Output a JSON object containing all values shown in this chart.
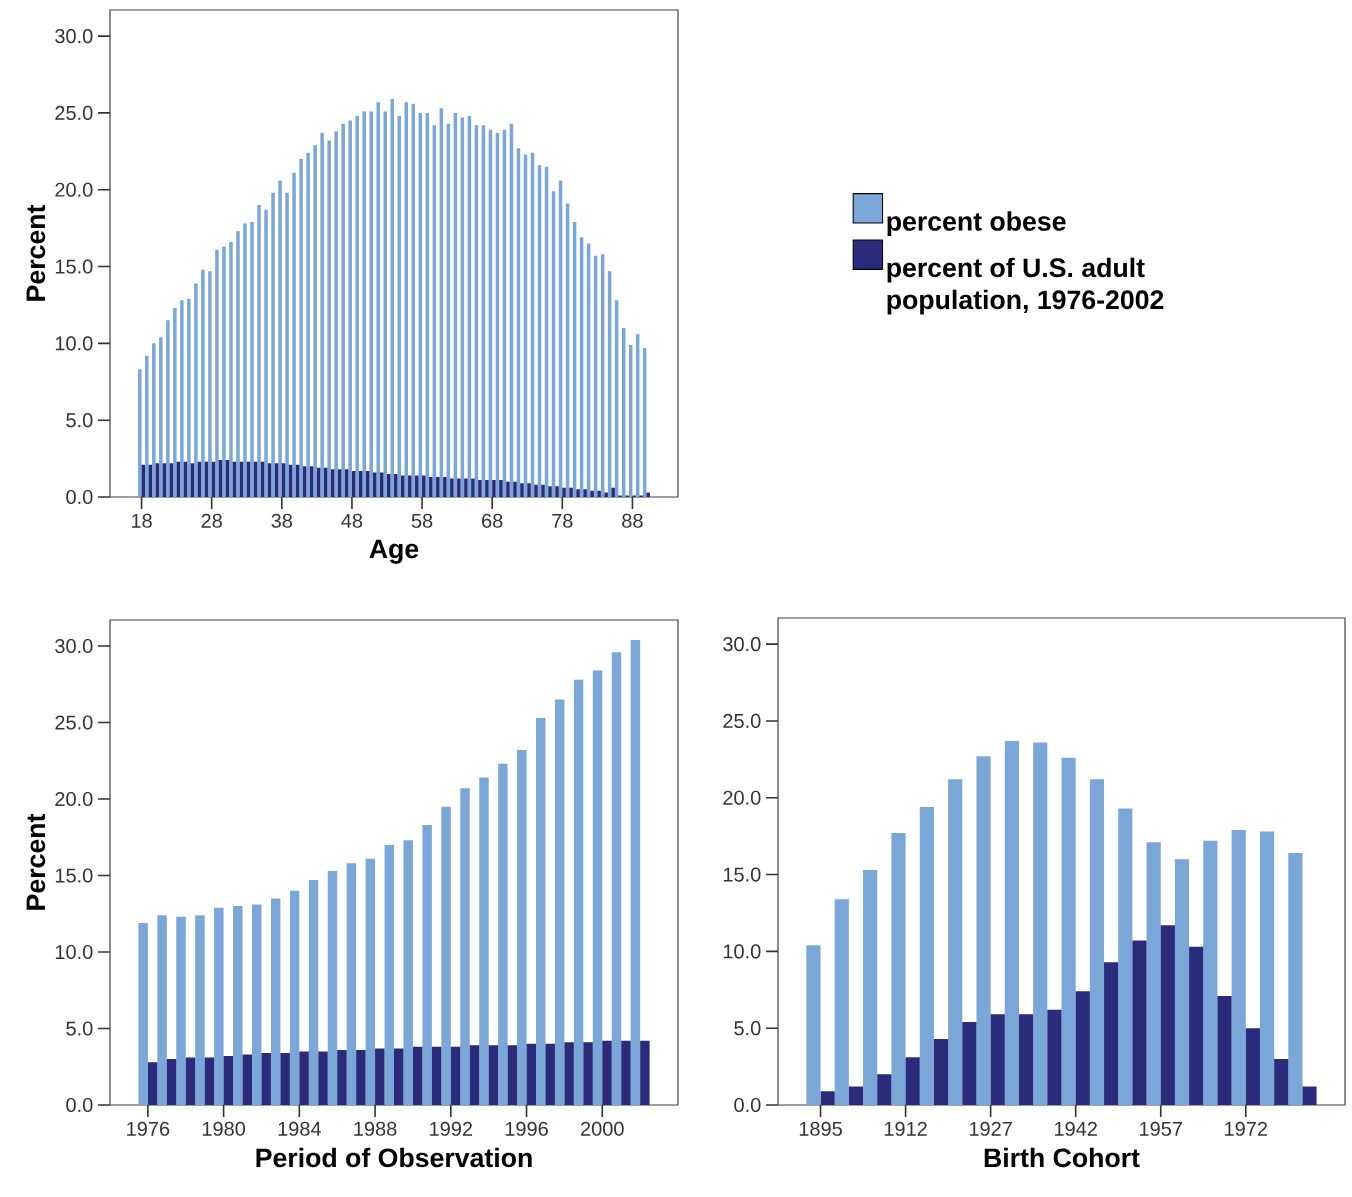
{
  "chart_data": [
    {
      "type": "bar",
      "xlabel": "Age",
      "ylabel": "Percent",
      "legend": "right",
      "categories": [
        "18",
        null,
        null,
        null,
        null,
        null,
        null,
        null,
        null,
        null,
        "28",
        null,
        null,
        null,
        null,
        null,
        null,
        null,
        null,
        null,
        "38",
        null,
        null,
        null,
        null,
        null,
        null,
        null,
        null,
        null,
        "48",
        null,
        null,
        null,
        null,
        null,
        null,
        null,
        null,
        null,
        "58",
        null,
        null,
        null,
        null,
        null,
        null,
        null,
        null,
        null,
        "68",
        null,
        null,
        null,
        null,
        null,
        null,
        null,
        null,
        null,
        "78",
        null,
        null,
        null,
        null,
        null,
        null,
        null,
        null,
        null,
        "88",
        null,
        null
      ],
      "series": [
        {
          "name": "percent obese",
          "color": "#7aa7d8",
          "values": [
            8.3,
            9.2,
            10.0,
            10.4,
            11.5,
            12.3,
            12.8,
            12.9,
            13.9,
            14.8,
            14.7,
            16.1,
            16.3,
            16.6,
            17.3,
            17.8,
            17.9,
            19.0,
            18.7,
            19.8,
            20.6,
            19.8,
            21.1,
            22.0,
            22.4,
            22.9,
            23.7,
            23.2,
            23.8,
            24.3,
            24.5,
            24.8,
            25.1,
            25.1,
            25.7,
            25.1,
            25.9,
            24.8,
            25.7,
            25.6,
            25.0,
            25.0,
            24.2,
            25.3,
            24.3,
            25.0,
            24.7,
            24.8,
            24.2,
            24.2,
            23.9,
            23.7,
            23.9,
            24.3,
            22.7,
            22.3,
            22.4,
            21.6,
            21.5,
            19.9,
            20.6,
            19.1,
            17.9,
            16.9,
            16.5,
            15.7,
            15.8,
            14.7,
            12.8,
            11.0,
            9.9,
            10.6,
            9.7
          ]
        },
        {
          "name": "percent of U.S. adult population, 1976-2002",
          "color": "#2b2b7b",
          "values": [
            2.1,
            2.1,
            2.2,
            2.2,
            2.2,
            2.3,
            2.3,
            2.2,
            2.3,
            2.3,
            2.3,
            2.4,
            2.4,
            2.3,
            2.3,
            2.3,
            2.3,
            2.3,
            2.2,
            2.2,
            2.2,
            2.1,
            2.1,
            2.0,
            2.0,
            1.9,
            1.9,
            1.8,
            1.8,
            1.8,
            1.7,
            1.7,
            1.7,
            1.6,
            1.6,
            1.5,
            1.5,
            1.4,
            1.4,
            1.4,
            1.4,
            1.3,
            1.3,
            1.3,
            1.2,
            1.2,
            1.2,
            1.2,
            1.1,
            1.1,
            1.1,
            1.1,
            1.0,
            1.0,
            0.9,
            0.9,
            0.8,
            0.8,
            0.7,
            0.7,
            0.6,
            0.6,
            0.5,
            0.5,
            0.4,
            0.4,
            0.3,
            0.6,
            0.1,
            0.1,
            0.1,
            0.1,
            0.3
          ]
        }
      ],
      "ylim": [
        0,
        31.7
      ],
      "yticks": [
        {
          "value": 0,
          "label": "0.0"
        },
        {
          "value": 5,
          "label": "5.0"
        },
        {
          "value": 10,
          "label": "10.0"
        },
        {
          "value": 15,
          "label": "15.0"
        },
        {
          "value": 20,
          "label": "20.0"
        },
        {
          "value": 25,
          "label": "25.0"
        },
        {
          "value": 30,
          "label": "30.0"
        }
      ]
    },
    {
      "type": "bar",
      "xlabel": "Period of Observation",
      "ylabel": "Percent",
      "categories": [
        "1976",
        null,
        null,
        null,
        "1980",
        null,
        null,
        null,
        "1984",
        null,
        null,
        null,
        "1988",
        null,
        null,
        null,
        "1992",
        null,
        null,
        null,
        "1996",
        null,
        null,
        null,
        "2000",
        null,
        null
      ],
      "series": [
        {
          "color": "#7aa7d8",
          "values": [
            11.9,
            12.4,
            12.3,
            12.4,
            12.9,
            13.0,
            13.1,
            13.5,
            14.0,
            14.7,
            15.3,
            15.8,
            16.1,
            17.0,
            17.3,
            18.3,
            19.5,
            20.7,
            21.4,
            22.3,
            23.2,
            25.3,
            26.5,
            27.8,
            28.4,
            29.6,
            30.4
          ]
        },
        {
          "color": "#2b2b7b",
          "values": [
            2.8,
            3.0,
            3.1,
            3.1,
            3.2,
            3.3,
            3.4,
            3.4,
            3.5,
            3.5,
            3.6,
            3.6,
            3.7,
            3.7,
            3.8,
            3.8,
            3.8,
            3.9,
            3.9,
            3.9,
            4.0,
            4.0,
            4.1,
            4.1,
            4.2,
            4.2,
            4.2
          ]
        }
      ],
      "ylim": [
        0,
        31.7
      ],
      "yticks": [
        {
          "value": 0,
          "label": "0.0"
        },
        {
          "value": 5,
          "label": "5.0"
        },
        {
          "value": 10,
          "label": "10.0"
        },
        {
          "value": 15,
          "label": "15.0"
        },
        {
          "value": 20,
          "label": "20.0"
        },
        {
          "value": 25,
          "label": "25.0"
        },
        {
          "value": 30,
          "label": "30.0"
        }
      ]
    },
    {
      "type": "bar",
      "xlabel": "Birth Cohort",
      "categories": [
        "1895",
        null,
        null,
        "1912",
        null,
        null,
        "1927",
        null,
        null,
        "1942",
        null,
        null,
        "1957",
        null,
        null,
        "1972",
        null,
        null
      ],
      "series": [
        {
          "color": "#7aa7d8",
          "values": [
            10.4,
            13.4,
            15.3,
            17.7,
            19.4,
            21.2,
            22.7,
            23.7,
            23.6,
            22.6,
            21.2,
            19.3,
            17.1,
            16.0,
            17.2,
            17.9,
            17.8,
            16.4
          ]
        },
        {
          "color": "#2b2b7b",
          "values": [
            0.9,
            1.2,
            2.0,
            3.1,
            4.3,
            5.4,
            5.9,
            5.9,
            6.2,
            7.4,
            9.3,
            10.7,
            11.7,
            10.3,
            7.1,
            5.0,
            3.0,
            1.2
          ]
        }
      ],
      "ylim": [
        0,
        31.7
      ],
      "yticks": [
        {
          "value": 0,
          "label": "0.0"
        },
        {
          "value": 5,
          "label": "5.0"
        },
        {
          "value": 10,
          "label": "10.0"
        },
        {
          "value": 15,
          "label": "15.0"
        },
        {
          "value": 20,
          "label": "20.0"
        },
        {
          "value": 25,
          "label": "25.0"
        },
        {
          "value": 30,
          "label": "30.0"
        }
      ]
    }
  ]
}
